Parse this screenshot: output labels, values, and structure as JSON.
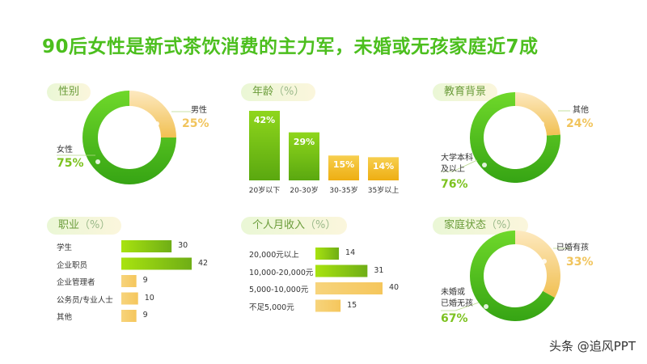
{
  "title": "90后女性是新式茶饮消费的主力军，未婚或无孩家庭近7成",
  "watermark": "头条 @追风PPT",
  "colors": {
    "green": "#5cc820",
    "green_dark": "#3aa614",
    "yellow": "#f3c75f",
    "yellow_light": "#fbe6b3"
  },
  "chart_data": [
    {
      "id": "gender",
      "type": "pie",
      "title": "性别",
      "slices": [
        {
          "label": "男性",
          "value": 25,
          "display": "25%"
        },
        {
          "label": "女性",
          "value": 75,
          "display": "75%"
        }
      ]
    },
    {
      "id": "age",
      "type": "bar",
      "title": "年龄",
      "unit": "（%）",
      "categories": [
        "20岁以下",
        "20-30岁",
        "30-35岁",
        "35岁以上"
      ],
      "values": [
        42,
        29,
        15,
        14
      ]
    },
    {
      "id": "education",
      "type": "pie",
      "title": "教育背景",
      "slices": [
        {
          "label": "其他",
          "value": 24,
          "display": "24%"
        },
        {
          "label": "大学本科及以上",
          "value": 76,
          "display": "76%",
          "lines": [
            "大学本科",
            "及以上"
          ]
        }
      ]
    },
    {
      "id": "occupation",
      "type": "bar",
      "orientation": "horizontal",
      "title": "职业",
      "unit": "（%）",
      "categories": [
        "学生",
        "企业职员",
        "企业管理者",
        "公务员/专业人士",
        "其他"
      ],
      "values": [
        30,
        42,
        9,
        10,
        9
      ]
    },
    {
      "id": "income",
      "type": "bar",
      "orientation": "horizontal",
      "title": "个人月收入",
      "unit": "（%）",
      "categories": [
        "20,000元以上",
        "10,000-20,000元",
        "5,000-10,000元",
        "不足5,000元"
      ],
      "values": [
        14,
        31,
        40,
        15
      ]
    },
    {
      "id": "family",
      "type": "pie",
      "title": "家庭状态",
      "unit": "（%）",
      "slices": [
        {
          "label": "已婚有孩",
          "value": 33,
          "display": "33%"
        },
        {
          "label": "未婚或已婚无孩",
          "value": 67,
          "display": "67%",
          "lines": [
            "未婚或",
            "已婚无孩"
          ]
        }
      ]
    }
  ]
}
